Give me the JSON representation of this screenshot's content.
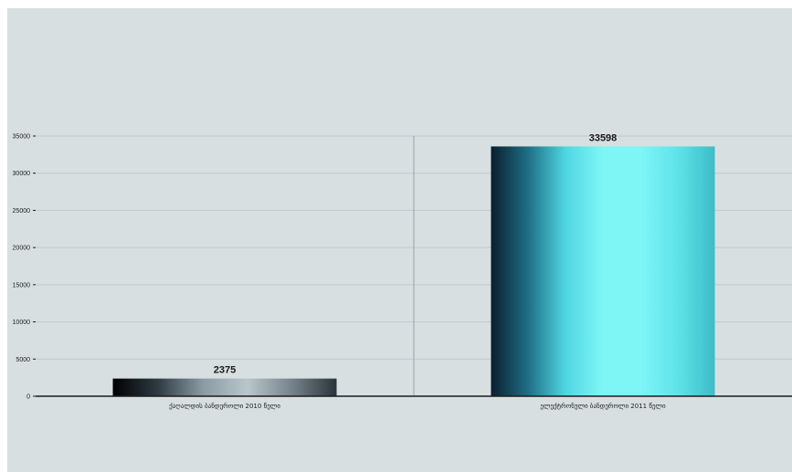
{
  "chart_data": {
    "type": "bar",
    "title": "",
    "xlabel": "",
    "ylabel": "",
    "ylim": [
      0,
      35000
    ],
    "yticks": [
      0,
      5000,
      10000,
      15000,
      20000,
      25000,
      30000,
      35000
    ],
    "grid": true,
    "legend": "none",
    "categories": [
      "ქაღალდის ბანდეროლი 2010 წელი",
      "ელექტრონული ბანდეროლი 2011 წელი"
    ],
    "values": [
      2375,
      33598
    ],
    "data_labels": [
      "2375",
      "33598"
    ],
    "colors": {
      "background": "#d7dfe0",
      "gridline": "#bfc9cb",
      "axis": "#1c1c1c",
      "bar1_gradient": [
        "#000000",
        "#2e3a42",
        "#8a9aa2",
        "#b9c6cc",
        "#76838a",
        "#2a333a"
      ],
      "bar2_gradient": [
        "#0a1e2e",
        "#1f6f86",
        "#4fd6e2",
        "#7ef6f6",
        "#7ef6f6",
        "#5fe3ea",
        "#3cbcc8"
      ]
    }
  }
}
